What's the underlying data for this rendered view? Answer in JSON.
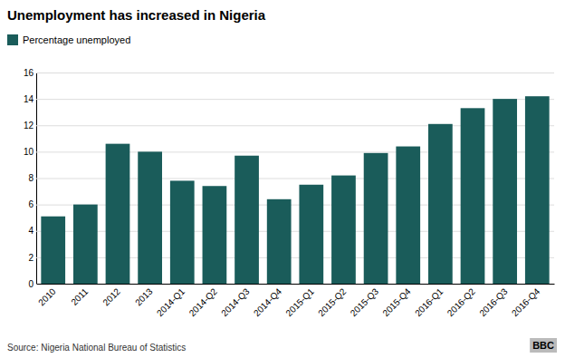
{
  "chart_data": {
    "type": "bar",
    "title": "Unemployment has increased in Nigeria",
    "categories": [
      "2010",
      "2011",
      "2012",
      "2013",
      "2014-Q1",
      "2014-Q2",
      "2014-Q3",
      "2014-Q4",
      "2015-Q1",
      "2015-Q2",
      "2015-Q3",
      "2015-Q4",
      "2016-Q1",
      "2016-Q2",
      "2016-Q3",
      "2016-Q4"
    ],
    "series": [
      {
        "name": "Percentage unemployed",
        "color": "#1a5c5a",
        "values": [
          5.1,
          6.0,
          10.6,
          10.0,
          7.8,
          7.4,
          9.7,
          6.4,
          7.5,
          8.2,
          9.9,
          10.4,
          12.1,
          13.3,
          14.0,
          14.2
        ]
      }
    ],
    "ylim": [
      0,
      16
    ],
    "yticks": [
      0,
      2,
      4,
      6,
      8,
      10,
      12,
      14,
      16
    ],
    "grid": true,
    "legend": "upper left",
    "annotations": [
      "Source: Nigeria National Bureau of Statistics",
      "BBC"
    ]
  }
}
